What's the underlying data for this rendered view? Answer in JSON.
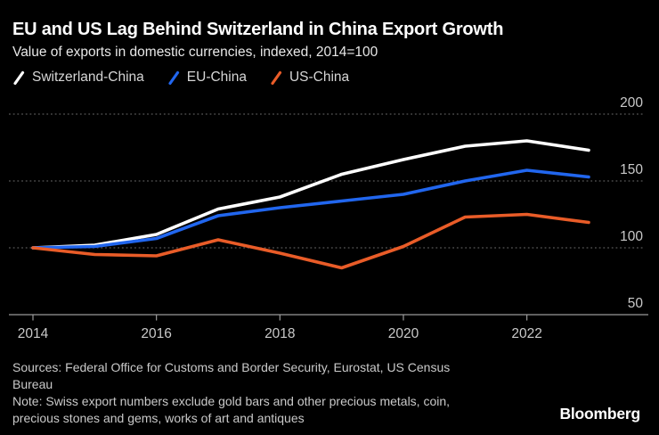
{
  "header": {
    "title": "EU and US Lag Behind Switzerland in China Export Growth",
    "subtitle": "Value of exports in domestic currencies, indexed, 2014=100"
  },
  "chart_data": {
    "type": "line",
    "title": "EU and US Lag Behind Switzerland in China Export Growth",
    "subtitle": "Value of exports in domestic currencies, indexed, 2014=100",
    "x": [
      2014,
      2015,
      2016,
      2017,
      2018,
      2019,
      2020,
      2021,
      2022,
      2023
    ],
    "series": [
      {
        "name": "Switzerland-China",
        "color": "#ffffff",
        "values": [
          100,
          102,
          110,
          129,
          138,
          155,
          166,
          176,
          180,
          173
        ]
      },
      {
        "name": "EU-China",
        "color": "#2166ee",
        "values": [
          100,
          101,
          107,
          124,
          130,
          135,
          140,
          150,
          158,
          153
        ]
      },
      {
        "name": "US-China",
        "color": "#e95c28",
        "values": [
          100,
          95,
          94,
          106,
          96,
          85,
          101,
          123,
          125,
          119
        ]
      }
    ],
    "xticks": [
      2014,
      2016,
      2018,
      2020,
      2022
    ],
    "yticks": [
      50,
      100,
      150,
      200
    ],
    "ylim": [
      50,
      210
    ],
    "xlabel": "",
    "ylabel": "",
    "grid": "horizontal-dotted",
    "legend_position": "top-left",
    "background": "#000000"
  },
  "colors": {
    "axis_text": "#c9c9c9",
    "grid_line": "#585858",
    "axis_line": "#9a9a9a"
  },
  "footer": {
    "lines": [
      "Sources: Federal Office for Customs and Border Security, Eurostat, US Census",
      "Bureau",
      "Note: Swiss export numbers exclude gold bars and other precious metals, coin,",
      "precious stones and gems, works of art and antiques"
    ],
    "brand": "Bloomberg"
  }
}
